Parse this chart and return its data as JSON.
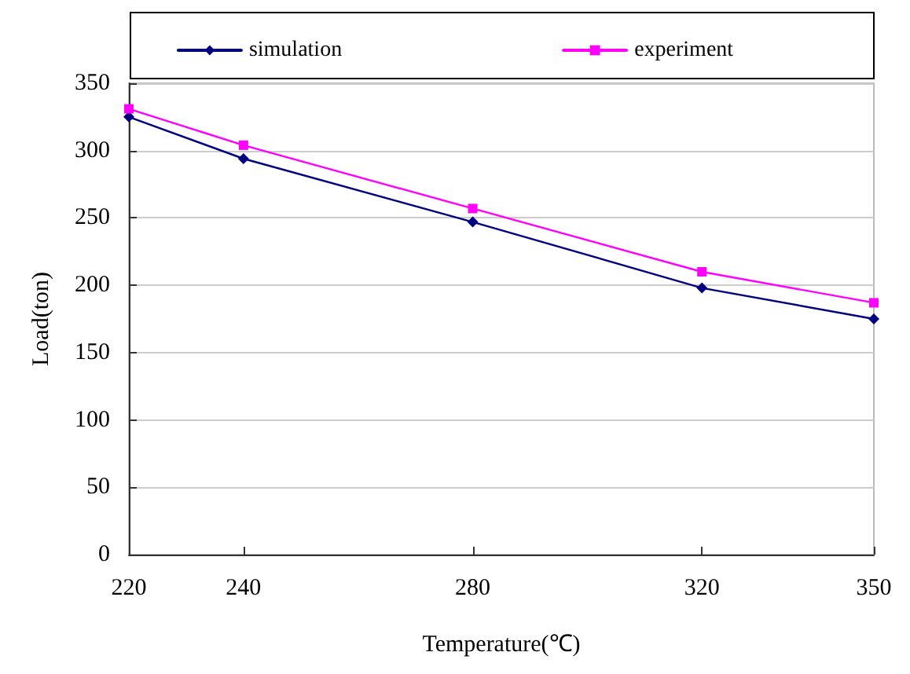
{
  "chart_data": {
    "type": "line",
    "xlabel": "Temperature(℃)",
    "ylabel": "Load(ton)",
    "x": [
      220,
      240,
      280,
      320,
      350
    ],
    "series": [
      {
        "name": "simulation",
        "color": "#000080",
        "marker": "diamond",
        "values": [
          325,
          294,
          247,
          198,
          175
        ]
      },
      {
        "name": "experiment",
        "color": "#ff00ff",
        "marker": "square",
        "values": [
          331,
          304,
          257,
          210,
          187
        ]
      }
    ],
    "xlim": [
      220,
      350
    ],
    "xticks": [
      220,
      240,
      280,
      320,
      350
    ],
    "ylim": [
      0,
      350
    ],
    "yticks": [
      0,
      50,
      100,
      150,
      200,
      250,
      300,
      350
    ],
    "grid": "y",
    "legend": "top"
  }
}
